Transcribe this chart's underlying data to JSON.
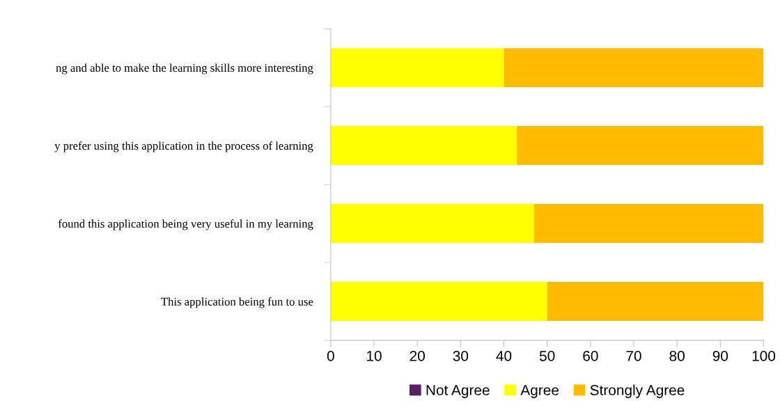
{
  "chart_data": {
    "type": "bar",
    "orientation": "horizontal",
    "stacked": true,
    "categories": [
      "ng and able to make the learning skills more interesting",
      "y prefer using this application in the process of learning",
      "found this application being very useful in my learning",
      "This application being fun to use"
    ],
    "series": [
      {
        "name": "Not Agree",
        "color": "#5b2064",
        "values": [
          0,
          0,
          0,
          0
        ]
      },
      {
        "name": "Agree",
        "color": "#ffff00",
        "values": [
          40,
          43,
          47,
          50
        ]
      },
      {
        "name": "Strongly Agree",
        "color": "#ffbb00",
        "values": [
          60,
          57,
          53,
          50
        ]
      }
    ],
    "xlim": [
      0,
      100
    ],
    "xticks": [
      0,
      10,
      20,
      30,
      40,
      50,
      60,
      70,
      80,
      90,
      100
    ],
    "grid": false,
    "legend": "bottom"
  }
}
